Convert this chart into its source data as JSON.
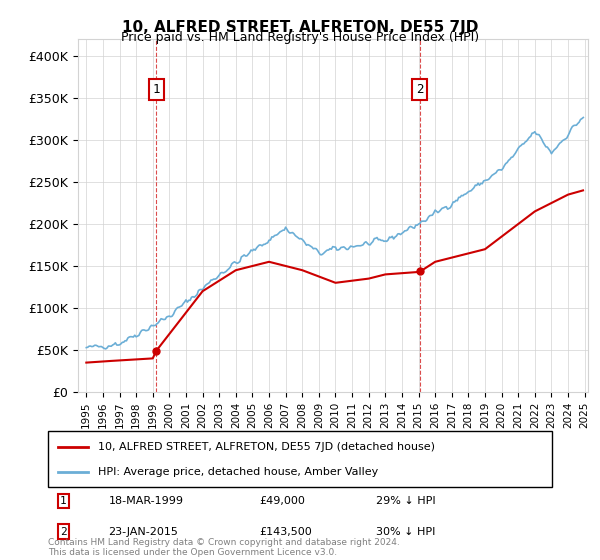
{
  "title": "10, ALFRED STREET, ALFRETON, DE55 7JD",
  "subtitle": "Price paid vs. HM Land Registry's House Price Index (HPI)",
  "legend_line1": "10, ALFRED STREET, ALFRETON, DE55 7JD (detached house)",
  "legend_line2": "HPI: Average price, detached house, Amber Valley",
  "annotation1_label": "1",
  "annotation1_date": "18-MAR-1999",
  "annotation1_price": "£49,000",
  "annotation1_hpi": "29% ↓ HPI",
  "annotation2_label": "2",
  "annotation2_date": "23-JAN-2015",
  "annotation2_price": "£143,500",
  "annotation2_hpi": "30% ↓ HPI",
  "footer": "Contains HM Land Registry data © Crown copyright and database right 2024.\nThis data is licensed under the Open Government Licence v3.0.",
  "hpi_color": "#6baed6",
  "price_color": "#cc0000",
  "annotation_box_color": "#cc0000",
  "ylim": [
    0,
    420000
  ],
  "yticks": [
    0,
    50000,
    100000,
    150000,
    200000,
    250000,
    300000,
    350000,
    400000
  ],
  "ytick_labels": [
    "£0",
    "£50K",
    "£100K",
    "£150K",
    "£200K",
    "£250K",
    "£300K",
    "£350K",
    "£400K"
  ]
}
